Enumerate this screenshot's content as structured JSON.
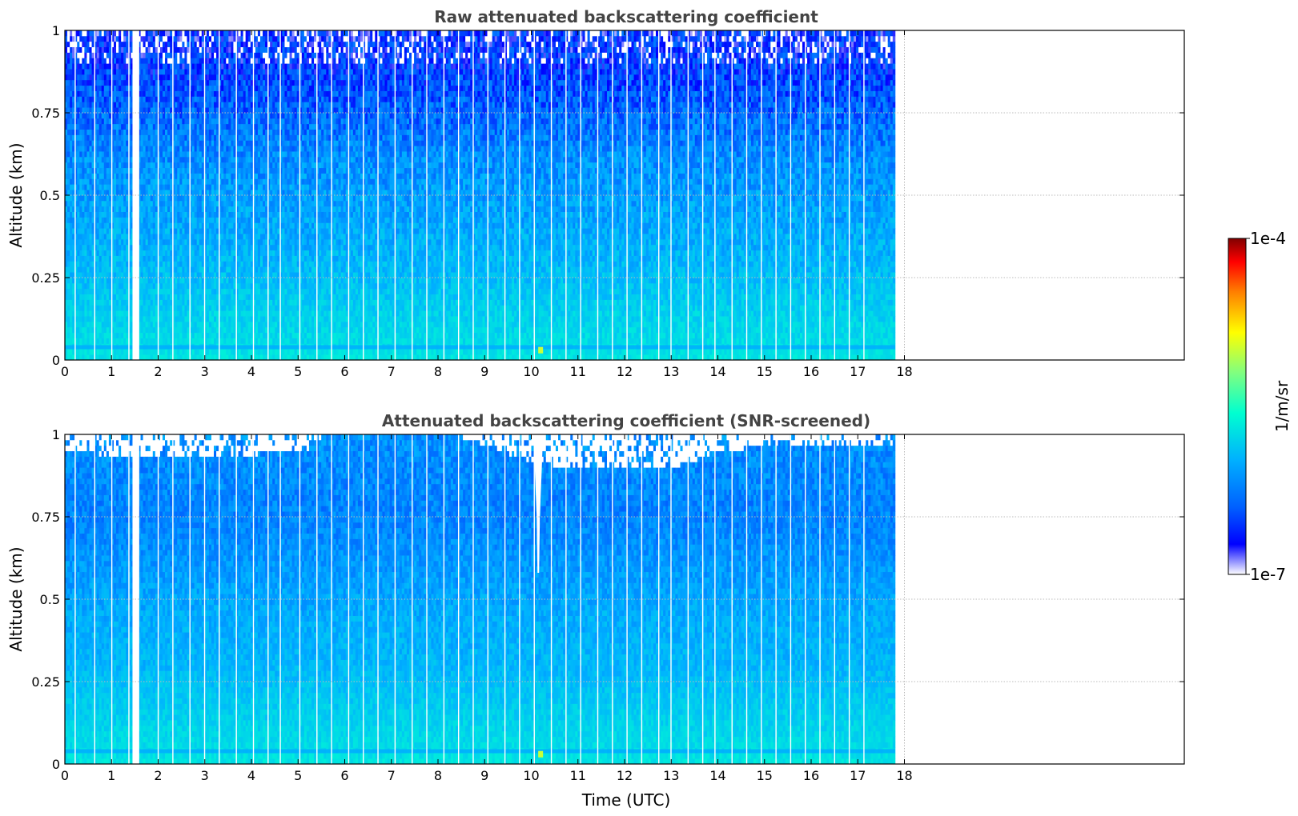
{
  "chart_data": [
    {
      "type": "heatmap",
      "title": "Raw attenuated backscattering coefficient",
      "xlabel": "",
      "ylabel": "Altitude (km)",
      "xlim": [
        0,
        24
      ],
      "ylim": [
        0,
        1
      ],
      "x_ticks": [
        "0",
        "1",
        "2",
        "3",
        "4",
        "5",
        "6",
        "7",
        "8",
        "9",
        "10",
        "11",
        "12",
        "13",
        "14",
        "15",
        "16",
        "17",
        "18"
      ],
      "y_ticks": [
        "0",
        "0.25",
        "0.5",
        "0.75",
        "1"
      ],
      "grid": true,
      "data_extent_hours": [
        0,
        17.8
      ],
      "colorscale": "log",
      "screened": false,
      "profile": {
        "altitude_km": [
          0.0,
          0.05,
          0.15,
          0.3,
          0.45,
          0.6,
          0.75,
          0.9,
          1.0
        ],
        "log10_backscatter": [
          -5.7,
          -5.75,
          -5.82,
          -5.95,
          -6.05,
          -6.15,
          -6.35,
          -6.55,
          -6.6
        ]
      },
      "annotations": [
        {
          "label": "near-surface hotspot",
          "time_h": 10.2,
          "altitude_km": 0.025,
          "log10_backscatter": -5.0
        }
      ]
    },
    {
      "type": "heatmap",
      "title": "Attenuated backscattering coefficient (SNR-screened)",
      "xlabel": "Time (UTC)",
      "ylabel": "Altitude (km)",
      "xlim": [
        0,
        24
      ],
      "ylim": [
        0,
        1
      ],
      "x_ticks": [
        "0",
        "1",
        "2",
        "3",
        "4",
        "5",
        "6",
        "7",
        "8",
        "9",
        "10",
        "11",
        "12",
        "13",
        "14",
        "15",
        "16",
        "17",
        "18"
      ],
      "y_ticks": [
        "0",
        "0.25",
        "0.5",
        "0.75",
        "1"
      ],
      "grid": true,
      "data_extent_hours": [
        0,
        17.8
      ],
      "colorscale": "log",
      "screened": true,
      "profile": {
        "altitude_km": [
          0.0,
          0.05,
          0.15,
          0.3,
          0.45,
          0.6,
          0.75,
          0.9,
          1.0
        ],
        "log10_backscatter": [
          -5.7,
          -5.75,
          -5.82,
          -5.95,
          -6.0,
          -6.1,
          -6.22,
          -6.18,
          -6.15
        ]
      },
      "annotations": [
        {
          "label": "near-surface hotspot",
          "time_h": 10.2,
          "altitude_km": 0.025,
          "log10_backscatter": -5.0
        },
        {
          "label": "screened gap",
          "time_h": 10.15,
          "altitude_km": 0.6
        }
      ]
    }
  ],
  "colorbar": {
    "label": "1/m/sr",
    "min_label": "1e-7",
    "max_label": "1e-4",
    "log10_min": -7,
    "log10_max": -4,
    "colors": [
      "#ffffff",
      "#0000ff",
      "#0080ff",
      "#00c8ff",
      "#00ffd0",
      "#80ff80",
      "#ffff00",
      "#ff8000",
      "#ff0000",
      "#800000"
    ]
  }
}
